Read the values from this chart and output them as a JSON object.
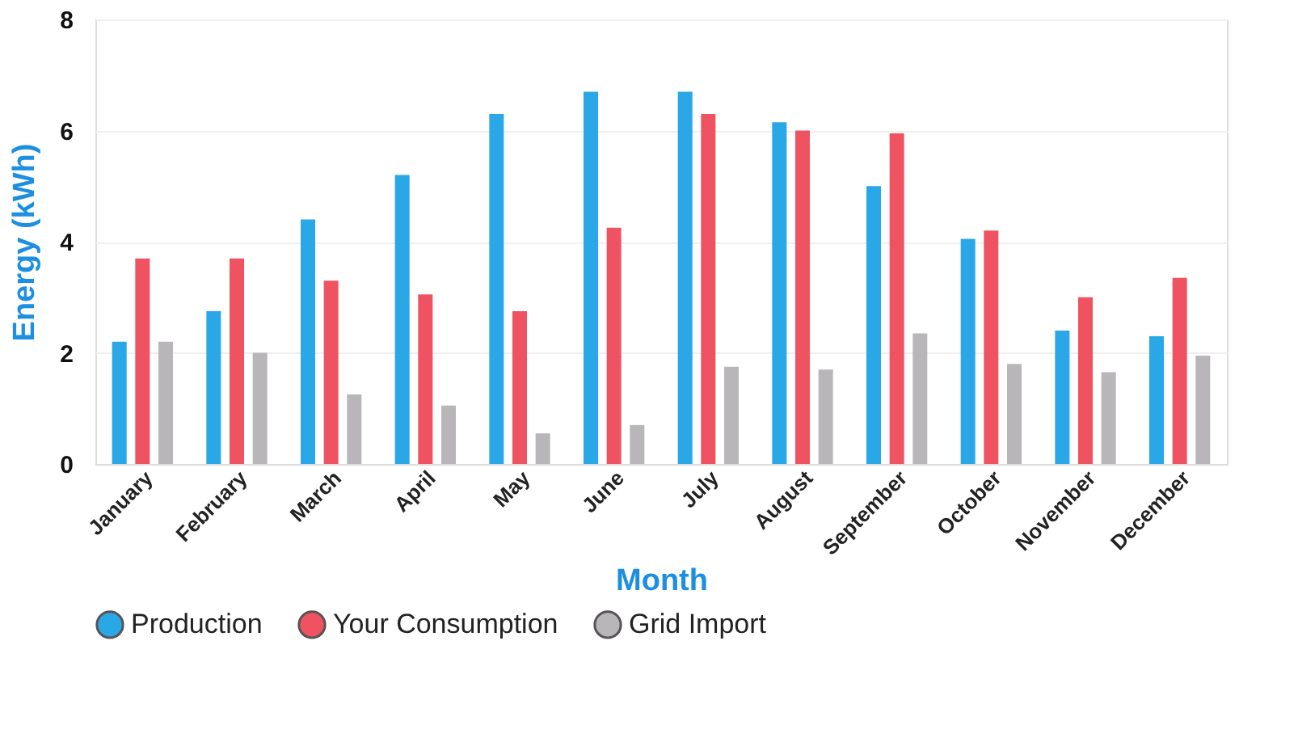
{
  "chart_data": {
    "type": "bar",
    "xlabel": "Month",
    "ylabel": "Energy (kWh)",
    "categories": [
      "January",
      "February",
      "March",
      "April",
      "May",
      "June",
      "July",
      "August",
      "September",
      "October",
      "November",
      "December"
    ],
    "series": [
      {
        "name": "Production",
        "color": "#2aa7e6",
        "values": [
          2.2,
          2.75,
          4.4,
          5.2,
          6.3,
          6.7,
          6.7,
          6.15,
          5.0,
          4.05,
          2.4,
          2.3
        ]
      },
      {
        "name": "Your Consumption",
        "color": "#ef5361",
        "values": [
          3.7,
          3.7,
          3.3,
          3.05,
          2.75,
          4.25,
          6.3,
          6.0,
          5.95,
          4.2,
          3.0,
          3.35
        ]
      },
      {
        "name": "Grid Import",
        "color": "#b8b6b8",
        "values": [
          2.2,
          2.0,
          1.25,
          1.05,
          0.55,
          0.7,
          1.75,
          1.7,
          2.35,
          1.8,
          1.65,
          1.95
        ]
      }
    ],
    "ylim": [
      0,
      8
    ],
    "yticks": [
      0,
      2,
      4,
      6,
      8
    ],
    "grid": "y",
    "legend": "bottom left"
  }
}
